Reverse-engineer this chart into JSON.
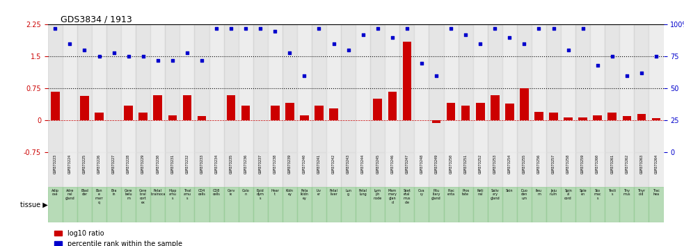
{
  "title": "GDS3834 / 1913",
  "gsm_labels": [
    "GSM373223",
    "GSM373224",
    "GSM373225",
    "GSM373226",
    "GSM373227",
    "GSM373228",
    "GSM373229",
    "GSM373230",
    "GSM373231",
    "GSM373232",
    "GSM373233",
    "GSM373234",
    "GSM373235",
    "GSM373236",
    "GSM373237",
    "GSM373238",
    "GSM373239",
    "GSM373240",
    "GSM373241",
    "GSM373242",
    "GSM373243",
    "GSM373244",
    "GSM373245",
    "GSM373246",
    "GSM373247",
    "GSM373248",
    "GSM373249",
    "GSM373250",
    "GSM373251",
    "GSM373252",
    "GSM373253",
    "GSM373254",
    "GSM373255",
    "GSM373256",
    "GSM373257",
    "GSM373258",
    "GSM373259",
    "GSM373260",
    "GSM373261",
    "GSM373262",
    "GSM373263",
    "GSM373264"
  ],
  "tissue_labels": [
    "Adip\nose",
    "Adre\nnal\ngland",
    "Blad\nder",
    "Bon\ne\nmarr\nq",
    "Bra\nin",
    "Cere\nbelu\nm",
    "Cere\nbral\ncort\nex",
    "Fetal\nbrainoca",
    "Hipp\namu\ns",
    "Thal\namu\ns",
    "CD4\ncells",
    "CD8\ncells",
    "Cerv\nix",
    "Colo\nn",
    "Epid\ndym\ns",
    "Hear\nt",
    "Kidn\ney",
    "Feta\nlkidn\ney",
    "Liv\ner",
    "Fetal\nliver",
    "Lun\ng",
    "Fetal\nlung",
    "Lym\nph\nnode",
    "Mam\nmary\nglan\nd",
    "Sket\netal\nmus\ncle",
    "Ova\nry",
    "Pitu\nitary\ngland",
    "Plac\nenta",
    "Pros\ntate",
    "Reti\nnal",
    "Saliv\nary\ngland",
    "Skin",
    "Duo\nden\num",
    "Ileu\nm",
    "Jeju\nnum",
    "Spin\nal\ncord",
    "Sple\nen",
    "Sto\nmac\ns",
    "Testi\ns",
    "Thy\nmus",
    "Thyr\noid",
    "Trac\nhea"
  ],
  "log10_ratio": [
    0.68,
    0.0,
    0.57,
    0.18,
    0.0,
    0.35,
    0.18,
    0.6,
    0.12,
    0.6,
    0.1,
    0.0,
    0.6,
    0.35,
    0.0,
    0.35,
    0.42,
    0.12,
    0.35,
    0.28,
    0.0,
    0.0,
    0.52,
    0.68,
    1.85,
    0.0,
    -0.05,
    0.42,
    0.35,
    0.42,
    0.6,
    0.4,
    0.75,
    0.2,
    0.18,
    0.08,
    0.08,
    0.12,
    0.18,
    0.1,
    0.15,
    0.05
  ],
  "percentile_rank": [
    97,
    85,
    80,
    75,
    78,
    75,
    75,
    72,
    72,
    78,
    72,
    97,
    97,
    97,
    97,
    95,
    78,
    60,
    97,
    85,
    80,
    92,
    97,
    90,
    97,
    70,
    60,
    97,
    92,
    85,
    97,
    90,
    85,
    97,
    97,
    80,
    97,
    68,
    75,
    60,
    62,
    75
  ],
  "bar_color": "#cc0000",
  "dot_color": "#0000cc",
  "bg_color_dark": "#cccccc",
  "bg_color_light": "#dddddd",
  "tissue_bg_color": "#99cc99",
  "ylim_left": [
    -0.75,
    2.25
  ],
  "ylim_right": [
    0,
    100
  ],
  "yticks_left": [
    -0.75,
    0,
    0.75,
    1.5,
    2.25
  ],
  "yticks_right": [
    0,
    25,
    50,
    75,
    100
  ],
  "hlines": [
    0.75,
    1.5
  ]
}
